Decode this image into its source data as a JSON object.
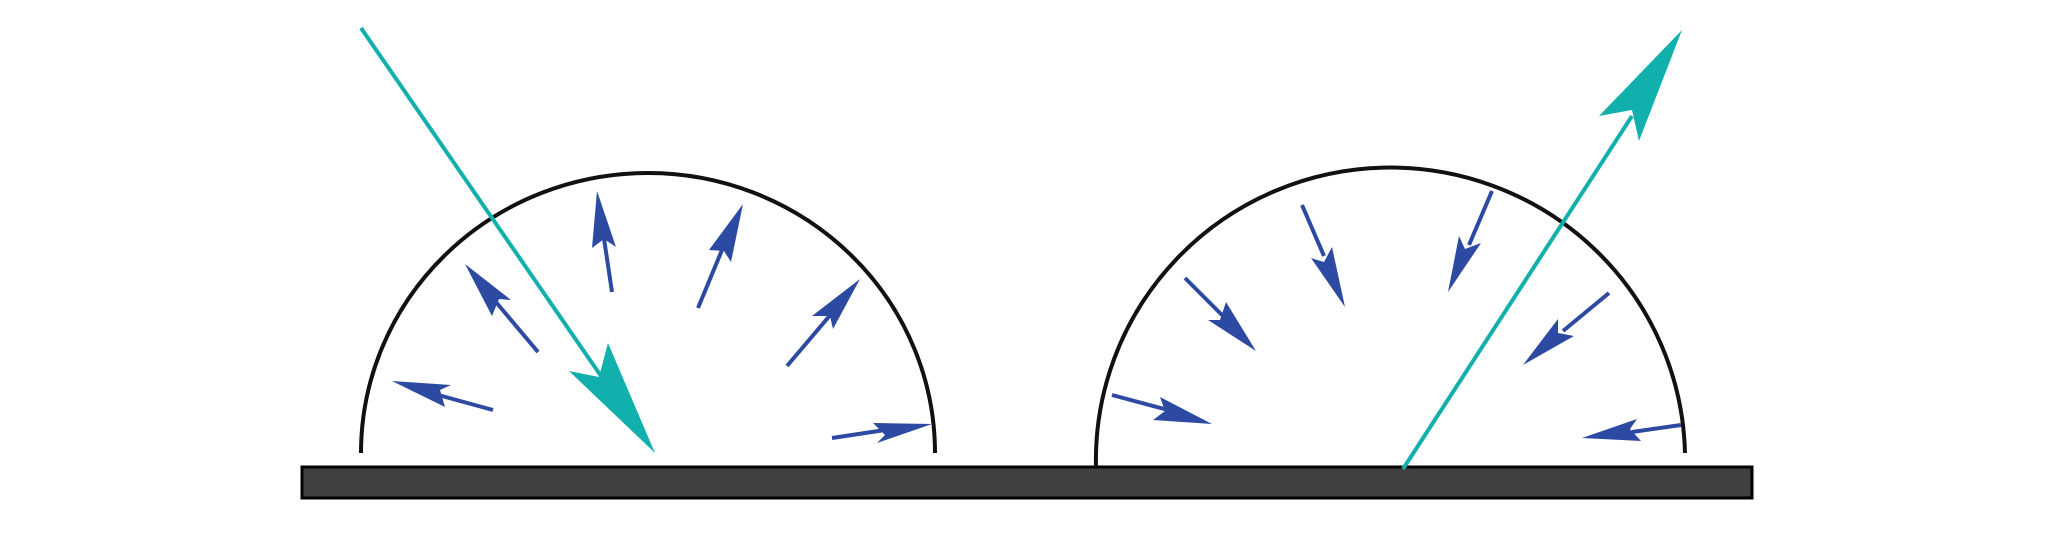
{
  "colors": {
    "background": "#ffffff",
    "surface_fill": "#404040",
    "surface_stroke": "#000000",
    "hemisphere_stroke": "#111111",
    "incident_ray": "#12b0ad",
    "scattered_arrows": "#2d4aa3"
  },
  "panels": [
    {
      "id": "incoming",
      "ray_direction": "incident",
      "scattered_arrow_count": 6
    },
    {
      "id": "outgoing",
      "ray_direction": "reflected",
      "scattered_arrow_count": 6
    }
  ]
}
